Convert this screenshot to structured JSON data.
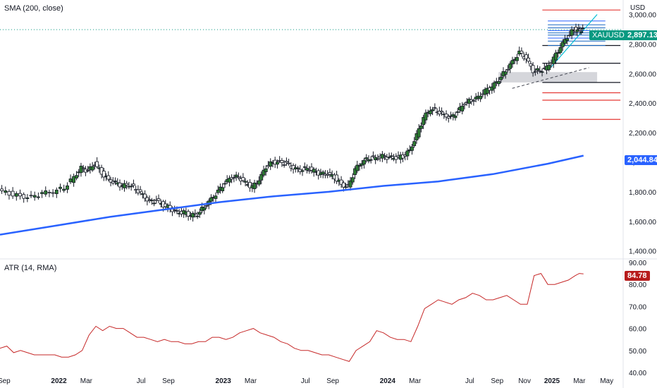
{
  "panels": {
    "price": {
      "indicator_label": "SMA (200, close)",
      "currency": "USD",
      "symbol": "XAUUSD",
      "last_price": "2,897.13",
      "sma_value": "2,044.84",
      "last_color": "#089981",
      "sma_color": "#2962ff"
    },
    "atr": {
      "indicator_label": "ATR (14, RMA)",
      "last_value": "84.78",
      "line_color": "#c62828"
    }
  },
  "chart_data": [
    {
      "type": "candlestick",
      "title": "",
      "y_ticks": [
        "1,400.00",
        "1,600.00",
        "1,800.00",
        "2,000.00",
        "2,200.00",
        "2,400.00",
        "2,600.00",
        "2,800.00",
        "3,000.00"
      ],
      "y_tick_values": [
        1400,
        1600,
        1800,
        2000,
        2200,
        2400,
        2600,
        2800,
        3000
      ],
      "ylim": [
        1370,
        3050
      ],
      "x_ticks": [
        {
          "label": "Sep",
          "bold": false,
          "t": 0.3
        },
        {
          "label": "2022",
          "bold": true,
          "t": 4.3
        },
        {
          "label": "Mar",
          "bold": false,
          "t": 6.3
        },
        {
          "label": "Jul",
          "bold": false,
          "t": 10.3
        },
        {
          "label": "Sep",
          "bold": false,
          "t": 12.3
        },
        {
          "label": "2023",
          "bold": true,
          "t": 16.3
        },
        {
          "label": "Mar",
          "bold": false,
          "t": 18.3
        },
        {
          "label": "Jul",
          "bold": false,
          "t": 22.3
        },
        {
          "label": "Sep",
          "bold": false,
          "t": 24.3
        },
        {
          "label": "2024",
          "bold": true,
          "t": 28.3
        },
        {
          "label": "Mar",
          "bold": false,
          "t": 30.3
        },
        {
          "label": "Jul",
          "bold": false,
          "t": 34.3
        },
        {
          "label": "Sep",
          "bold": false,
          "t": 36.3
        },
        {
          "label": "Nov",
          "bold": false,
          "t": 38.3
        },
        {
          "label": "2025",
          "bold": true,
          "t": 40.3
        },
        {
          "label": "Mar",
          "bold": false,
          "t": 42.3
        },
        {
          "label": "May",
          "bold": false,
          "t": 44.3
        }
      ],
      "close_series": [
        [
          0,
          1810
        ],
        [
          0.8,
          1790
        ],
        [
          1.6,
          1770
        ],
        [
          2.4,
          1760
        ],
        [
          3.2,
          1790
        ],
        [
          4,
          1800
        ],
        [
          4.8,
          1830
        ],
        [
          5.5,
          1900
        ],
        [
          6,
          1960
        ],
        [
          6.5,
          1940
        ],
        [
          7,
          1990
        ],
        [
          7.5,
          1930
        ],
        [
          8,
          1880
        ],
        [
          8.5,
          1860
        ],
        [
          9,
          1840
        ],
        [
          9.5,
          1850
        ],
        [
          10,
          1820
        ],
        [
          10.5,
          1780
        ],
        [
          11,
          1730
        ],
        [
          11.5,
          1740
        ],
        [
          12,
          1710
        ],
        [
          12.5,
          1690
        ],
        [
          13,
          1660
        ],
        [
          13.5,
          1660
        ],
        [
          14,
          1640
        ],
        [
          14.5,
          1650
        ],
        [
          15,
          1700
        ],
        [
          15.5,
          1750
        ],
        [
          16,
          1800
        ],
        [
          16.5,
          1860
        ],
        [
          17,
          1900
        ],
        [
          17.5,
          1900
        ],
        [
          18,
          1860
        ],
        [
          18.5,
          1830
        ],
        [
          19,
          1880
        ],
        [
          19.5,
          1970
        ],
        [
          20,
          2000
        ],
        [
          20.5,
          2000
        ],
        [
          21,
          1990
        ],
        [
          21.5,
          1960
        ],
        [
          22,
          1950
        ],
        [
          22.5,
          1960
        ],
        [
          23,
          1940
        ],
        [
          23.5,
          1920
        ],
        [
          24,
          1920
        ],
        [
          24.5,
          1900
        ],
        [
          25,
          1850
        ],
        [
          25.5,
          1830
        ],
        [
          26,
          1950
        ],
        [
          26.5,
          2000
        ],
        [
          27,
          2030
        ],
        [
          27.5,
          2030
        ],
        [
          28,
          2040
        ],
        [
          28.5,
          2030
        ],
        [
          29,
          2030
        ],
        [
          29.5,
          2040
        ],
        [
          30,
          2080
        ],
        [
          30.5,
          2180
        ],
        [
          31,
          2300
        ],
        [
          31.5,
          2360
        ],
        [
          32,
          2350
        ],
        [
          32.5,
          2320
        ],
        [
          33,
          2300
        ],
        [
          33.5,
          2340
        ],
        [
          34,
          2400
        ],
        [
          34.5,
          2420
        ],
        [
          35,
          2440
        ],
        [
          35.5,
          2480
        ],
        [
          36,
          2510
        ],
        [
          36.5,
          2560
        ],
        [
          37,
          2620
        ],
        [
          37.5,
          2680
        ],
        [
          38,
          2740
        ],
        [
          38.5,
          2700
        ],
        [
          39,
          2620
        ],
        [
          39.5,
          2620
        ],
        [
          40,
          2640
        ],
        [
          40.5,
          2700
        ],
        [
          41,
          2780
        ],
        [
          41.5,
          2850
        ],
        [
          42,
          2900
        ],
        [
          42.3,
          2890
        ],
        [
          42.6,
          2897
        ]
      ],
      "sma_series": [
        [
          0,
          1510
        ],
        [
          4,
          1570
        ],
        [
          8,
          1630
        ],
        [
          12,
          1680
        ],
        [
          16,
          1730
        ],
        [
          20,
          1770
        ],
        [
          24,
          1800
        ],
        [
          28,
          1840
        ],
        [
          32,
          1870
        ],
        [
          36,
          1920
        ],
        [
          40,
          1990
        ],
        [
          42.6,
          2045
        ]
      ],
      "horizontal_levels": [
        3030,
        2790,
        2670,
        2540,
        2470,
        2420,
        2290
      ],
      "zone": [
        2540,
        2610
      ],
      "fib_levels": [
        2956,
        2930,
        2910,
        2890,
        2875,
        2860,
        2840,
        2820,
        2790
      ]
    },
    {
      "type": "line",
      "title": "",
      "y_ticks": [
        "40.00",
        "50.00",
        "60.00",
        "70.00",
        "80.00",
        "90.00"
      ],
      "y_tick_values": [
        40,
        50,
        60,
        70,
        80,
        90
      ],
      "ylim": [
        40,
        90
      ],
      "series": [
        [
          0,
          51
        ],
        [
          0.5,
          52
        ],
        [
          1,
          49
        ],
        [
          1.5,
          50
        ],
        [
          2,
          49
        ],
        [
          2.5,
          48
        ],
        [
          3,
          48
        ],
        [
          3.5,
          48
        ],
        [
          4,
          48
        ],
        [
          4.5,
          47
        ],
        [
          5,
          47
        ],
        [
          5.5,
          48
        ],
        [
          6,
          50
        ],
        [
          6.5,
          57
        ],
        [
          7,
          61
        ],
        [
          7.5,
          59
        ],
        [
          8,
          61
        ],
        [
          8.5,
          60
        ],
        [
          9,
          60
        ],
        [
          9.5,
          58
        ],
        [
          10,
          56
        ],
        [
          10.5,
          56
        ],
        [
          11,
          55
        ],
        [
          11.5,
          54
        ],
        [
          12,
          55
        ],
        [
          12.5,
          54
        ],
        [
          13,
          54
        ],
        [
          13.5,
          53
        ],
        [
          14,
          53
        ],
        [
          14.5,
          54
        ],
        [
          15,
          54
        ],
        [
          15.5,
          56
        ],
        [
          16,
          56
        ],
        [
          16.5,
          55
        ],
        [
          17,
          56
        ],
        [
          17.5,
          58
        ],
        [
          18,
          59
        ],
        [
          18.5,
          60
        ],
        [
          19,
          58
        ],
        [
          19.5,
          57
        ],
        [
          20,
          56
        ],
        [
          20.5,
          54
        ],
        [
          21,
          53
        ],
        [
          21.5,
          51
        ],
        [
          22,
          50
        ],
        [
          22.5,
          50
        ],
        [
          23,
          49
        ],
        [
          23.5,
          48
        ],
        [
          24,
          48
        ],
        [
          24.5,
          47
        ],
        [
          25,
          46
        ],
        [
          25.5,
          45
        ],
        [
          26,
          50
        ],
        [
          26.5,
          52
        ],
        [
          27,
          54
        ],
        [
          27.5,
          59
        ],
        [
          28,
          58
        ],
        [
          28.5,
          56
        ],
        [
          29,
          55
        ],
        [
          29.5,
          55
        ],
        [
          30,
          54
        ],
        [
          30.5,
          61
        ],
        [
          31,
          69
        ],
        [
          31.5,
          71
        ],
        [
          32,
          73
        ],
        [
          32.5,
          72
        ],
        [
          33,
          71
        ],
        [
          33.5,
          73
        ],
        [
          34,
          74
        ],
        [
          34.5,
          76
        ],
        [
          35,
          75
        ],
        [
          35.5,
          73
        ],
        [
          36,
          73
        ],
        [
          36.5,
          74
        ],
        [
          37,
          75
        ],
        [
          37.5,
          73
        ],
        [
          38,
          71
        ],
        [
          38.5,
          71
        ],
        [
          39,
          84
        ],
        [
          39.5,
          85
        ],
        [
          40,
          80
        ],
        [
          40.5,
          80
        ],
        [
          41,
          81
        ],
        [
          41.5,
          82
        ],
        [
          42,
          84
        ],
        [
          42.3,
          85
        ],
        [
          42.6,
          84.78
        ]
      ]
    }
  ]
}
